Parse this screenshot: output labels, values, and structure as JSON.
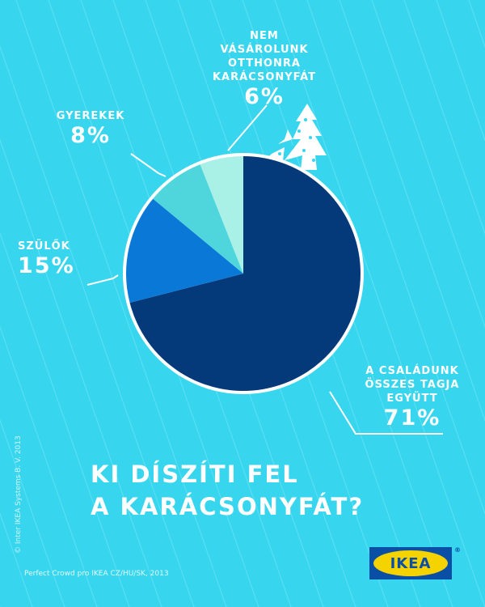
{
  "chart_data": {
    "type": "pie",
    "title": "KI DÍSZÍTI FEL A KARÁCSONYFÁT?",
    "title_lines": [
      "KI DÍSZÍTI FEL",
      "A KARÁCSONYFÁT?"
    ],
    "start_angle_deg": 0,
    "direction": "clockwise",
    "slices": [
      {
        "name": "A CSALÁDUNK ÖSSZES TAGJA EGYÜTT",
        "name_lines": [
          "A CSALÁDUNK",
          "ÖSSZES TAGJA",
          "EGYÜTT"
        ],
        "value": 71,
        "label": "71%",
        "color": "#053a7a"
      },
      {
        "name": "SZÜLŐK",
        "name_lines": [
          "SZÜLŐK"
        ],
        "value": 15,
        "label": "15%",
        "color": "#0a78d6"
      },
      {
        "name": "GYEREKEK",
        "name_lines": [
          "GYEREKEK"
        ],
        "value": 8,
        "label": "8%",
        "color": "#4fd6dc"
      },
      {
        "name": "NEM VÁSÁROLUNK OTTHONRA KARÁCSONYFÁT",
        "name_lines": [
          "NEM VÁSÁROLUNK",
          "OTTHONRA",
          "KARÁCSONYFÁT"
        ],
        "value": 6,
        "label": "6%",
        "color": "#a9f0e6"
      }
    ]
  },
  "colors": {
    "background": "#38d6ee",
    "stripe": "#5ee0f2",
    "pie_border": "#ffffff"
  },
  "footer": {
    "copyright": "© Inter IKEA Systems B. V. 2013",
    "source": "Perfect Crowd pro IKEA CZ/HU/SK, 2013"
  },
  "logo": {
    "text": "IKEA",
    "registered": "®",
    "colors": {
      "blue": "#0a4fa6",
      "yellow": "#f5d300"
    }
  }
}
